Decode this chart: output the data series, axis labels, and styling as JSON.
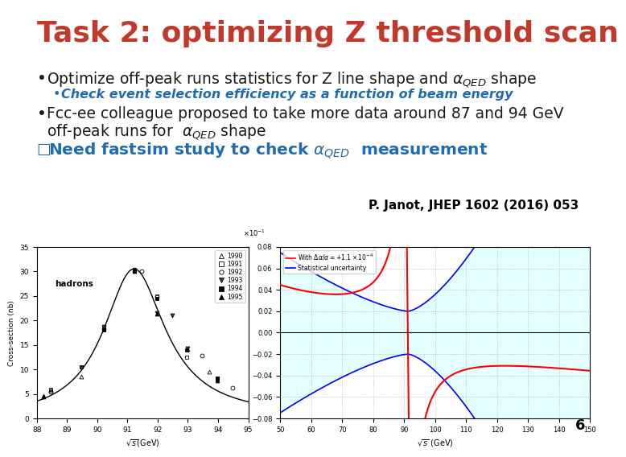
{
  "title": "Task 2: optimizing Z threshold scan",
  "title_color": "#C0392B",
  "title_fontsize": 26,
  "bg_color": "#FFFFFF",
  "sub_bullet": "Check event selection efficiency as a function of beam energy",
  "sub_bullet_color": "#1F6CB0",
  "bullet2_line1": "Fcc-ee colleague proposed to take more data around 87 and 94 GeV",
  "bullet3_color": "#1F6CB0",
  "ref": "P. Janot, JHEP 1602 (2016) 053",
  "page_num": "6",
  "text_color": "#1A1A1A",
  "bullet_fontsize": 13.5,
  "sub_fontsize": 11.5
}
